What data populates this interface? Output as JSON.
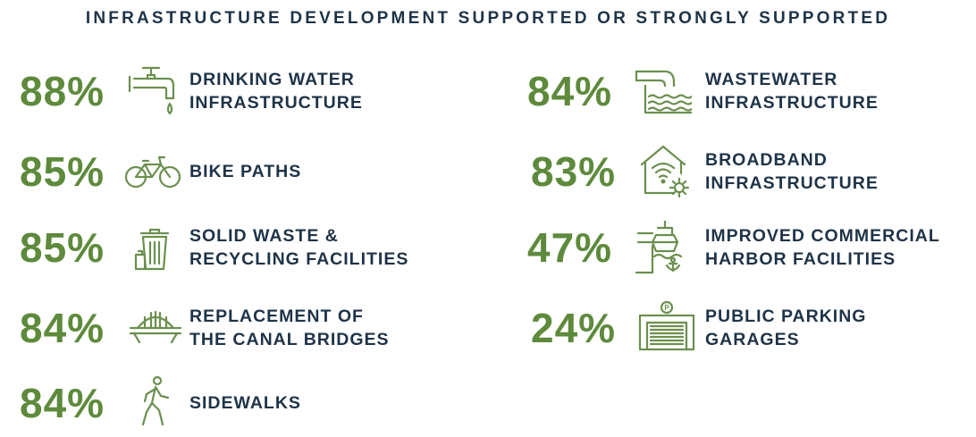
{
  "chart_data": {
    "type": "table",
    "title": "INFRASTRUCTURE DEVELOPMENT SUPPORTED OR STRONGLY SUPPORTED",
    "items": [
      {
        "value": "88%",
        "label_lines": [
          "DRINKING WATER",
          "INFRASTRUCTURE"
        ],
        "icon": "water-faucet-icon"
      },
      {
        "value": "85%",
        "label_lines": [
          "BIKE PATHS"
        ],
        "icon": "bicycle-icon"
      },
      {
        "value": "85%",
        "label_lines": [
          "SOLID WASTE &",
          "RECYCLING FACILITIES"
        ],
        "icon": "trash-can-icon"
      },
      {
        "value": "84%",
        "label_lines": [
          "REPLACEMENT OF",
          "THE CANAL BRIDGES"
        ],
        "icon": "bridge-icon"
      },
      {
        "value": "84%",
        "label_lines": [
          "SIDEWALKS"
        ],
        "icon": "pedestrian-icon"
      },
      {
        "value": "84%",
        "label_lines": [
          "WASTEWATER",
          "INFRASTRUCTURE"
        ],
        "icon": "wastewater-pipe-icon"
      },
      {
        "value": "83%",
        "label_lines": [
          "BROADBAND",
          "INFRASTRUCTURE"
        ],
        "icon": "broadband-house-icon"
      },
      {
        "value": "47%",
        "label_lines": [
          "IMPROVED COMMERCIAL",
          "HARBOR FACILITIES"
        ],
        "icon": "harbor-ship-icon"
      },
      {
        "value": "24%",
        "label_lines": [
          "PUBLIC PARKING",
          "GARAGES"
        ],
        "icon": "parking-garage-icon"
      }
    ],
    "colors": {
      "accent": "#5e8a3c",
      "text": "#1e3347"
    }
  }
}
